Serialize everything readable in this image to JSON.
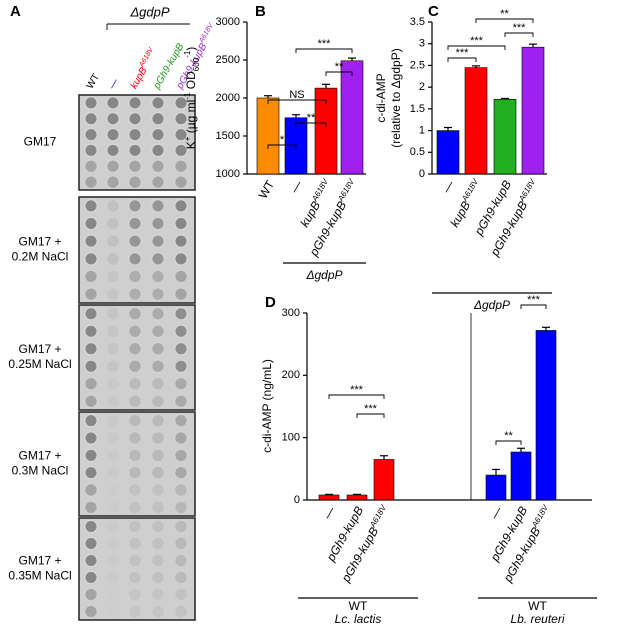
{
  "panel_a": {
    "panel": "A",
    "group_label": "ΔgdpP",
    "columns": [
      {
        "text": "WT",
        "color": "#000000"
      },
      {
        "text": "—",
        "color": "#0000ff"
      },
      {
        "text": "kupB",
        "sup": "A618V",
        "color": "#ff0000"
      },
      {
        "text": "pGh9-kupB",
        "color": "#1a9a1a"
      },
      {
        "text": "pGh9-kupB",
        "sup": "A618V",
        "color": "#9a2ad0"
      }
    ],
    "rows": [
      [
        "GM17"
      ],
      [
        "GM17 +",
        "0.2M NaCl"
      ],
      [
        "GM17 +",
        "0.25M NaCl"
      ],
      [
        "GM17 +",
        "0.3M NaCl"
      ],
      [
        "GM17 +",
        "0.35M NaCl"
      ]
    ]
  },
  "chart_data": [
    {
      "type": "bar",
      "panel": "B",
      "ylabel": [
        "K",
        "+",
        " (µg ml",
        "-1",
        " OD",
        "600",
        "-1",
        ")"
      ],
      "categories": [
        "WT",
        "—",
        "kupB",
        "pGh9-kupB"
      ],
      "category_superscripts": [
        null,
        null,
        "A618V",
        "A618V"
      ],
      "values": [
        2000,
        1740,
        2130,
        2490
      ],
      "errors": [
        30,
        40,
        50,
        35
      ],
      "colors": [
        "#ff8c00",
        "#0000ff",
        "#ff0000",
        "#a020f0"
      ],
      "ylim": [
        1000,
        3000
      ],
      "yticks": [
        1000,
        1500,
        2000,
        2500,
        3000
      ],
      "comparisons": [
        "*",
        "**",
        "NS",
        "**",
        "***"
      ],
      "group_label": "ΔgdpP"
    },
    {
      "type": "bar",
      "panel": "C",
      "ylabel": [
        "c-di-AMP",
        "(relative to ΔgdpP)"
      ],
      "categories": [
        "—",
        "kupB",
        "pGh9-kupB",
        "pGh9-kupB"
      ],
      "category_superscripts": [
        null,
        "A618V",
        null,
        "A618V"
      ],
      "values": [
        1.0,
        2.45,
        1.72,
        2.92
      ],
      "errors": [
        0.07,
        0.04,
        0.02,
        0.07
      ],
      "colors": [
        "#0000ff",
        "#ff0000",
        "#22b022",
        "#a020f0"
      ],
      "ylim": [
        0,
        3.5
      ],
      "yticks": [
        0,
        0.5,
        1.0,
        1.5,
        2.0,
        2.5,
        3.0,
        3.5
      ],
      "comparisons": [
        "**",
        "***",
        "***",
        "***"
      ],
      "group_label": "ΔgdpP"
    },
    {
      "type": "grouped-bar",
      "panel": "D",
      "ylabel": "c-di-AMP (ng/mL)",
      "ylim": [
        0,
        300
      ],
      "yticks": [
        0,
        100,
        200,
        300
      ],
      "groups": [
        {
          "label": "WT",
          "organism": "Lc. lactis",
          "color": "#ff0000",
          "categories": [
            "—",
            "pGh9-kupB",
            "pGh9-kupB"
          ],
          "category_superscripts": [
            null,
            null,
            "A618V"
          ],
          "values": [
            8,
            8,
            65
          ],
          "errors": [
            1,
            1,
            6
          ],
          "comparisons": [
            "***",
            "***"
          ]
        },
        {
          "label": "WT",
          "organism": "Lb. reuteri",
          "color": "#0000ff",
          "categories": [
            "—",
            "pGh9-kupB",
            "pGh9-kupB"
          ],
          "category_superscripts": [
            null,
            null,
            "A618V"
          ],
          "values": [
            40,
            77,
            272
          ],
          "errors": [
            9,
            6,
            5
          ],
          "comparisons": [
            "**",
            "***"
          ]
        }
      ]
    }
  ]
}
